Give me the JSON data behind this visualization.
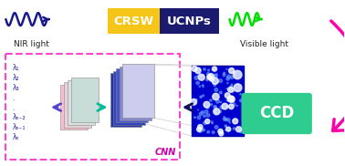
{
  "bg_color": "#ffffff",
  "nir_wave_color": "#1a1a8c",
  "vis_wave_color": "#00dd00",
  "crsw_color": "#f5c518",
  "ucnps_color": "#1a1a6e",
  "crsw_text": "CRSW",
  "ucnps_text": "UCNPs",
  "nir_label": "NIR light",
  "vis_label": "Visible light",
  "ccd_color": "#2ecc8e",
  "ccd_text": "CCD",
  "cnn_text": "CNN",
  "cnn_box_color": "#ff44cc",
  "pink_arrow_color": "#ff00aa",
  "blue_arrow_color": "#5544cc",
  "teal_arrow_color": "#00bb99",
  "dark_arrow_color": "#111155",
  "lambda_color": "#2222aa",
  "lambda_labels": [
    "λ₁",
    "λ₂",
    "λ₃",
    ".",
    ".",
    "λₙ₋₂",
    "λₙ₋₁",
    "λₙ"
  ],
  "pink_stack_colors": [
    "#f5c0cc",
    "#e8d0d8",
    "#d8e0e0",
    "#c8ddd8"
  ],
  "blue_stack_colors": [
    "#2233aa",
    "#3344bb",
    "#4455cc",
    "#8888cc",
    "#ccccee"
  ],
  "speckle_bg": "#0000cc",
  "speckle_dot_color": "#6699ff",
  "speckle_bright": "#aabbff"
}
